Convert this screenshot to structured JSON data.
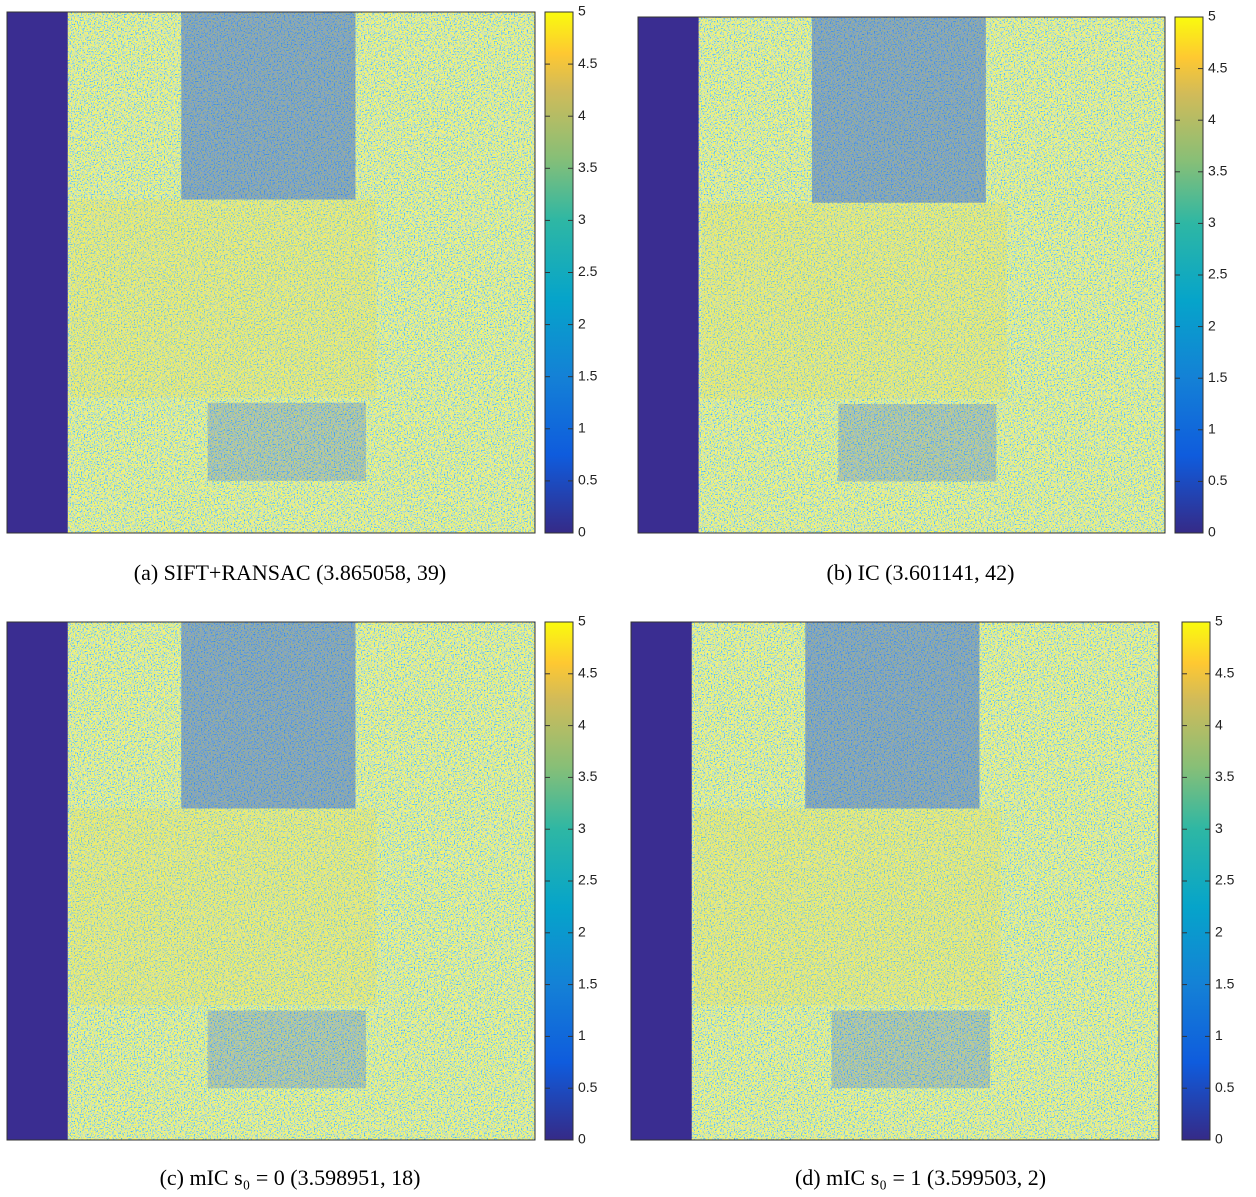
{
  "chart_data": [
    {
      "type": "heatmap",
      "title": "(a) SIFT+RANSAC (3.865058, 39)",
      "clim": [
        0,
        5
      ],
      "cticks": [
        0,
        0.5,
        1,
        1.5,
        2,
        2.5,
        3,
        3.5,
        4,
        4.5,
        5
      ]
    },
    {
      "type": "heatmap",
      "title": "(b) IC (3.601141, 42)",
      "clim": [
        0,
        5
      ],
      "cticks": [
        0,
        0.5,
        1,
        1.5,
        2,
        2.5,
        3,
        3.5,
        4,
        4.5,
        5
      ]
    },
    {
      "type": "heatmap",
      "title": "(c) mIC s₀ = 0 (3.598951, 18)",
      "clim": [
        0,
        5
      ],
      "cticks": [
        0,
        0.5,
        1,
        1.5,
        2,
        2.5,
        3,
        3.5,
        4,
        4.5,
        5
      ]
    },
    {
      "type": "heatmap",
      "title": "(d) mIC s₀ = 1 (3.599503, 2)",
      "clim": [
        0,
        5
      ],
      "cticks": [
        0,
        0.5,
        1,
        1.5,
        2,
        2.5,
        3,
        3.5,
        4,
        4.5,
        5
      ]
    }
  ]
}
